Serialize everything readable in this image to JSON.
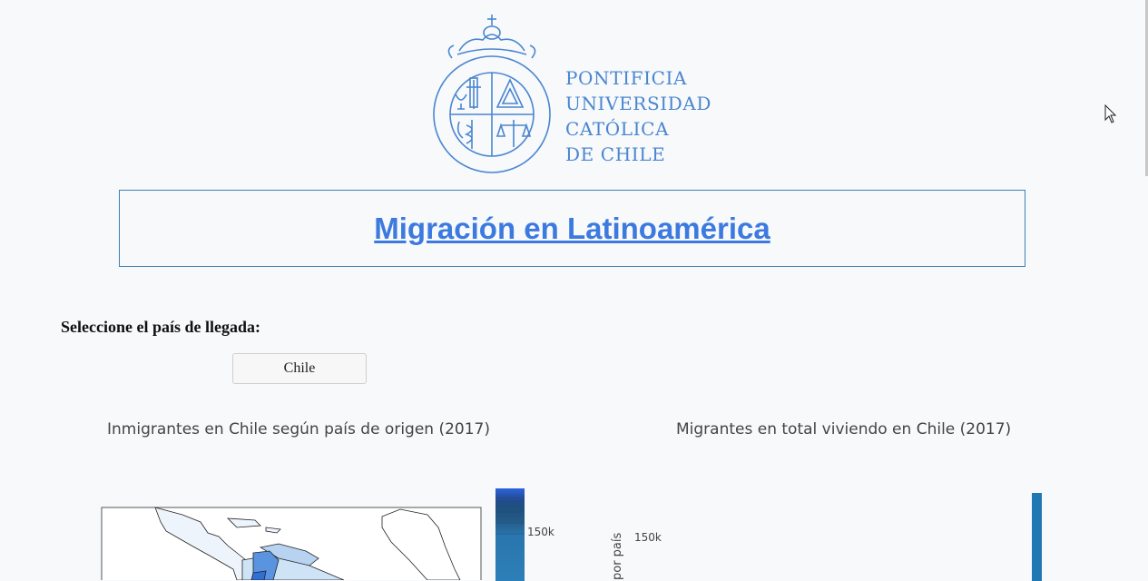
{
  "logo": {
    "lines": [
      "PONTIFICIA",
      "UNIVERSIDAD",
      "CATÓLICA",
      "DE CHILE"
    ],
    "seal_text": "PONTIFICIA UNIVERSIDAD CATÓLICA DE CHILE",
    "color": "#4a86d0"
  },
  "header": {
    "title": "Migración en Latinoamérica"
  },
  "selector": {
    "label": "Seleccione el país de llegada:",
    "value": "Chile"
  },
  "charts": {
    "map": {
      "title": "Inmigrantes en Chile según país de origen (2017)",
      "colorbar_tick": "150k"
    },
    "bar": {
      "title": "Migrantes en total viviendo en Chile (2017)",
      "y_tick": "150k",
      "y_label": "por país"
    }
  },
  "colors": {
    "title_link": "#3c7ae0",
    "border": "#3d7fb3",
    "bar": "#1f77b4"
  }
}
